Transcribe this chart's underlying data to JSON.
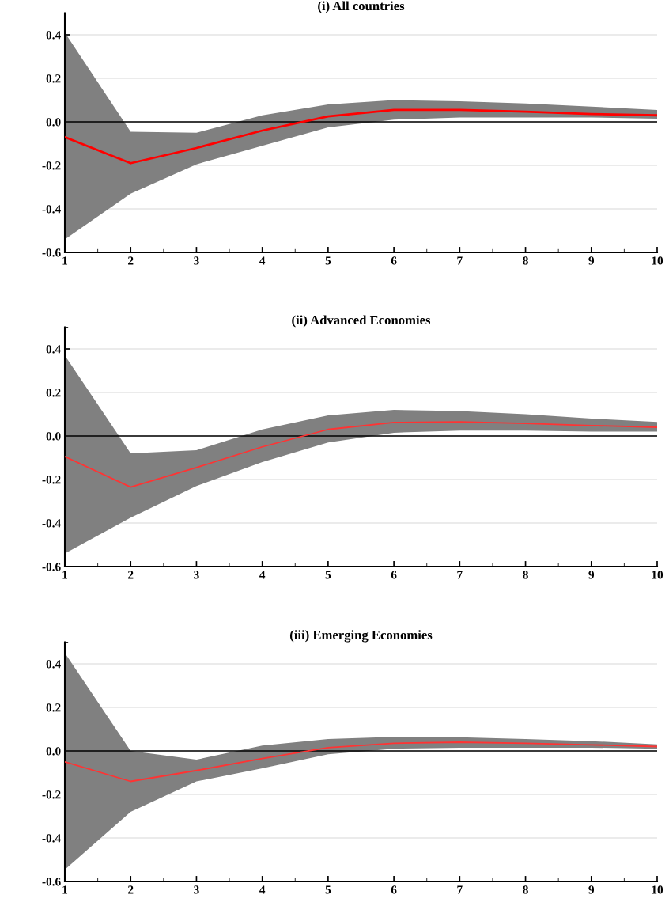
{
  "chart_data": [
    {
      "type": "line",
      "title": "(i) All countries",
      "x": [
        1,
        2,
        3,
        4,
        5,
        6,
        7,
        8,
        9,
        10
      ],
      "series": [
        {
          "color": "#ff0000",
          "values": [
            -0.07,
            -0.19,
            -0.12,
            -0.04,
            0.025,
            0.055,
            0.055,
            0.047,
            0.036,
            0.03
          ],
          "lower": [
            -0.54,
            -0.33,
            -0.195,
            -0.11,
            -0.025,
            0.01,
            0.02,
            0.02,
            0.02,
            0.015
          ],
          "upper": [
            0.41,
            -0.045,
            -0.05,
            0.03,
            0.08,
            0.1,
            0.095,
            0.085,
            0.07,
            0.055
          ]
        }
      ],
      "xlim": [
        1,
        10
      ],
      "xticks": [
        1,
        2,
        3,
        4,
        5,
        6,
        7,
        8,
        9,
        10
      ],
      "ylim": [
        -0.6,
        0.5
      ],
      "yticks": [
        {
          "value": -0.6,
          "label": "-0.6"
        },
        {
          "value": -0.4,
          "label": "-0.4"
        },
        {
          "value": -0.2,
          "label": "-0.2"
        },
        {
          "value": 0,
          "label": "0.0"
        },
        {
          "value": 0.2,
          "label": "0.2"
        },
        {
          "value": 0.4,
          "label": "0.4"
        }
      ],
      "ref_lines": [
        {
          "axis": "y",
          "value": 0,
          "color": "#000000"
        }
      ],
      "grid": "y",
      "marker": "none",
      "line_style": "solid"
    },
    {
      "type": "line",
      "title": "(ii) Advanced Economies",
      "x": [
        1,
        2,
        3,
        4,
        5,
        6,
        7,
        8,
        9,
        10
      ],
      "series": [
        {
          "color": "#ff3333",
          "values": [
            -0.095,
            -0.235,
            -0.145,
            -0.05,
            0.03,
            0.062,
            0.065,
            0.058,
            0.048,
            0.04
          ],
          "lower": [
            -0.54,
            -0.375,
            -0.23,
            -0.12,
            -0.03,
            0.015,
            0.025,
            0.025,
            0.02,
            0.02
          ],
          "upper": [
            0.37,
            -0.08,
            -0.065,
            0.03,
            0.095,
            0.12,
            0.115,
            0.1,
            0.08,
            0.065
          ]
        }
      ],
      "xlim": [
        1,
        10
      ],
      "xticks": [
        1,
        2,
        3,
        4,
        5,
        6,
        7,
        8,
        9,
        10
      ],
      "ylim": [
        -0.6,
        0.5
      ],
      "yticks": [
        {
          "value": -0.6,
          "label": "-0.6"
        },
        {
          "value": -0.4,
          "label": "-0.4"
        },
        {
          "value": -0.2,
          "label": "-0.2"
        },
        {
          "value": 0,
          "label": "0.0"
        },
        {
          "value": 0.2,
          "label": "0.2"
        },
        {
          "value": 0.4,
          "label": "0.4"
        }
      ],
      "ref_lines": [
        {
          "axis": "y",
          "value": 0,
          "color": "#000000"
        }
      ],
      "grid": "y",
      "marker": "none",
      "line_style": "solid"
    },
    {
      "type": "line",
      "title": "(iii) Emerging Economies",
      "x": [
        1,
        2,
        3,
        4,
        5,
        6,
        7,
        8,
        9,
        10
      ],
      "series": [
        {
          "color": "#ff3333",
          "values": [
            -0.05,
            -0.14,
            -0.09,
            -0.035,
            0.015,
            0.035,
            0.04,
            0.035,
            0.028,
            0.02
          ],
          "lower": [
            -0.545,
            -0.28,
            -0.14,
            -0.08,
            -0.015,
            0.01,
            0.015,
            0.015,
            0.015,
            0.01
          ],
          "upper": [
            0.45,
            0.0,
            -0.04,
            0.025,
            0.055,
            0.065,
            0.063,
            0.055,
            0.045,
            0.03
          ]
        }
      ],
      "xlim": [
        1,
        10
      ],
      "xticks": [
        1,
        2,
        3,
        4,
        5,
        6,
        7,
        8,
        9,
        10
      ],
      "ylim": [
        -0.6,
        0.5
      ],
      "yticks": [
        {
          "value": -0.6,
          "label": "-0.6"
        },
        {
          "value": -0.4,
          "label": "-0.4"
        },
        {
          "value": -0.2,
          "label": "-0.2"
        },
        {
          "value": 0,
          "label": "0.0"
        },
        {
          "value": 0.2,
          "label": "0.2"
        },
        {
          "value": 0.4,
          "label": "0.4"
        }
      ],
      "ref_lines": [
        {
          "axis": "y",
          "value": 0,
          "color": "#000000"
        }
      ],
      "grid": "y",
      "marker": "none",
      "line_style": "solid"
    }
  ]
}
